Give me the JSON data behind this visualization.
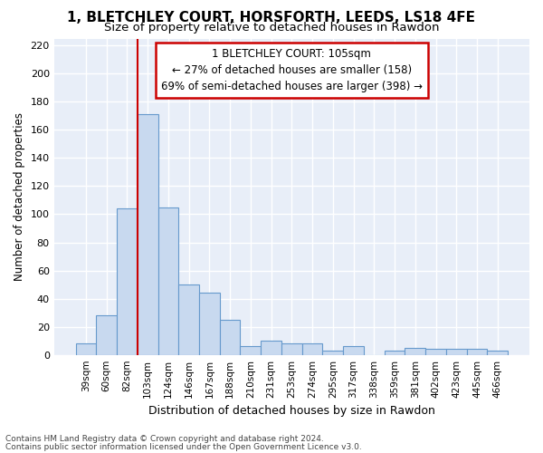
{
  "title_line1": "1, BLETCHLEY COURT, HORSFORTH, LEEDS, LS18 4FE",
  "title_line2": "Size of property relative to detached houses in Rawdon",
  "xlabel": "Distribution of detached houses by size in Rawdon",
  "ylabel": "Number of detached properties",
  "bar_labels": [
    "39sqm",
    "60sqm",
    "82sqm",
    "103sqm",
    "124sqm",
    "146sqm",
    "167sqm",
    "188sqm",
    "210sqm",
    "231sqm",
    "253sqm",
    "274sqm",
    "295sqm",
    "317sqm",
    "338sqm",
    "359sqm",
    "381sqm",
    "402sqm",
    "423sqm",
    "445sqm",
    "466sqm"
  ],
  "bar_values": [
    8,
    28,
    104,
    171,
    105,
    50,
    44,
    25,
    6,
    10,
    8,
    8,
    3,
    6,
    0,
    3,
    5,
    4,
    4,
    4,
    3
  ],
  "bar_color": "#c8d9ef",
  "bar_edge_color": "#6699cc",
  "background_color": "#e8eef8",
  "grid_color": "#ffffff",
  "annotation_text": "1 BLETCHLEY COURT: 105sqm\n← 27% of detached houses are smaller (158)\n69% of semi-detached houses are larger (398) →",
  "annotation_box_color": "#ffffff",
  "annotation_box_edge": "#cc0000",
  "vline_x": 2.5,
  "vline_color": "#cc0000",
  "ylim": [
    0,
    225
  ],
  "yticks": [
    0,
    20,
    40,
    60,
    80,
    100,
    120,
    140,
    160,
    180,
    200,
    220
  ],
  "title_fontsize": 11,
  "subtitle_fontsize": 9.5,
  "footer_line1": "Contains HM Land Registry data © Crown copyright and database right 2024.",
  "footer_line2": "Contains public sector information licensed under the Open Government Licence v3.0."
}
